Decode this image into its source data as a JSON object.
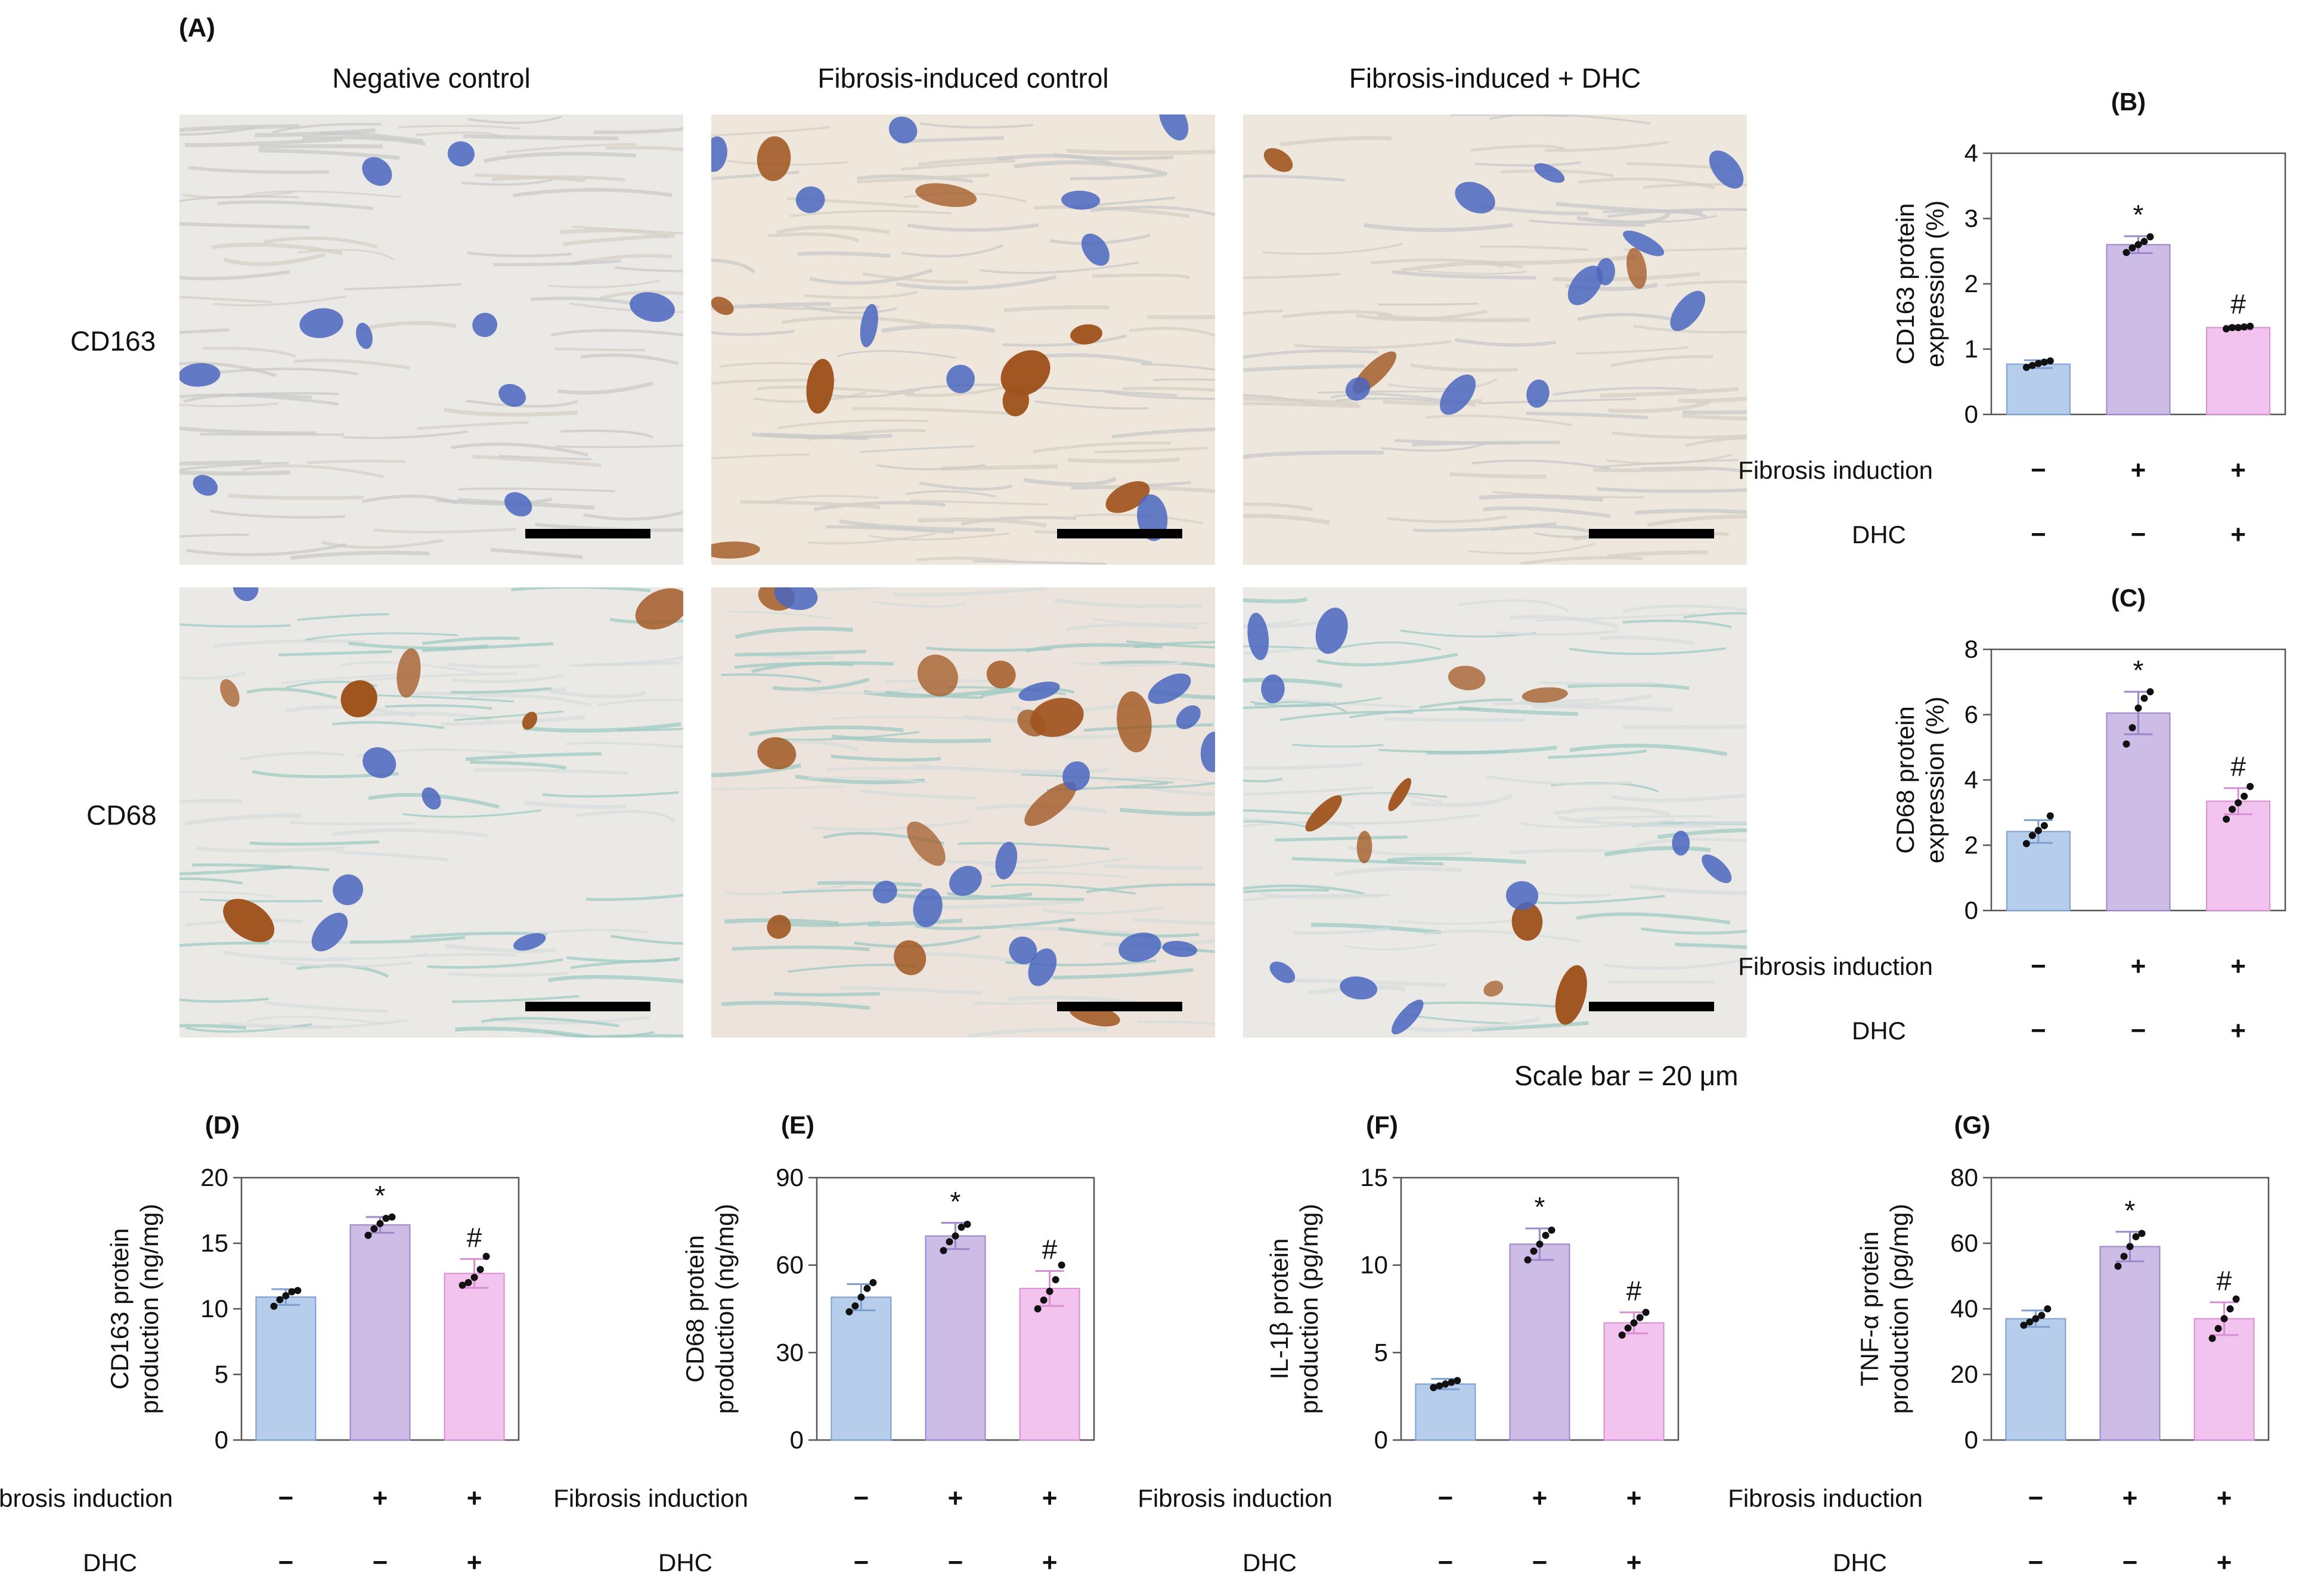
{
  "panel_a": {
    "letter": "(A)",
    "columns": [
      "Negative control",
      "Fibrosis-induced control",
      "Fibrosis-induced + DHC"
    ],
    "rows": [
      "CD163",
      "CD68"
    ],
    "scale_bar": "Scale bar = 20 μm"
  },
  "condition_rows": {
    "fibrosis_label": "Fibrosis induction",
    "dhc_label": "DHC",
    "fibrosis": [
      "−",
      "+",
      "+"
    ],
    "dhc": [
      "−",
      "−",
      "+"
    ]
  },
  "colors": {
    "negative": "#b6cdeb",
    "fibrosis": "#cdbde6",
    "dhc": "#f3c3ef",
    "negative_edge": "#7f9fcf",
    "fibrosis_edge": "#9d86c9",
    "dhc_edge": "#d68fd0",
    "nucleus": "#4a66c0",
    "stain": "#a0541e"
  },
  "chart_data": [
    {
      "id": "B",
      "letter": "(B)",
      "type": "bar",
      "ylabel": [
        "CD163 protein",
        "expression (%)"
      ],
      "ylim": [
        0,
        4
      ],
      "yticks": [
        0,
        1,
        2,
        3,
        4
      ],
      "values": [
        0.77,
        2.6,
        1.33
      ],
      "errors": [
        0.06,
        0.13,
        0.03
      ],
      "points": [
        [
          0.72,
          0.75,
          0.78,
          0.8,
          0.82
        ],
        [
          2.48,
          2.55,
          2.6,
          2.65,
          2.72
        ],
        [
          1.31,
          1.33,
          1.33,
          1.34,
          1.35
        ]
      ],
      "annotations": [
        "",
        "*",
        "#"
      ]
    },
    {
      "id": "C",
      "letter": "(C)",
      "type": "bar",
      "ylabel": [
        "CD68 protein",
        "expression (%)"
      ],
      "ylim": [
        0,
        8
      ],
      "yticks": [
        0,
        2,
        4,
        6,
        8
      ],
      "values": [
        2.42,
        6.05,
        3.35
      ],
      "errors": [
        0.35,
        0.65,
        0.4
      ],
      "points": [
        [
          2.05,
          2.3,
          2.45,
          2.6,
          2.9
        ],
        [
          5.1,
          5.6,
          6.2,
          6.5,
          6.7
        ],
        [
          2.8,
          3.1,
          3.3,
          3.5,
          3.8
        ]
      ],
      "annotations": [
        "",
        "*",
        "#"
      ]
    },
    {
      "id": "D",
      "letter": "(D)",
      "type": "bar",
      "ylabel": [
        "CD163 protein",
        "production (ng/mg)"
      ],
      "ylim": [
        0,
        20
      ],
      "yticks": [
        0,
        5,
        10,
        15,
        20
      ],
      "values": [
        10.9,
        16.4,
        12.7
      ],
      "errors": [
        0.6,
        0.6,
        1.1
      ],
      "points": [
        [
          10.2,
          10.7,
          11.0,
          11.3,
          11.4
        ],
        [
          15.6,
          16.1,
          16.5,
          16.9,
          17.0
        ],
        [
          11.8,
          12.0,
          12.4,
          13.0,
          14.0
        ]
      ],
      "annotations": [
        "",
        "*",
        "#"
      ]
    },
    {
      "id": "E",
      "letter": "(E)",
      "type": "bar",
      "ylabel": [
        "CD68 protein",
        "production (ng/mg)"
      ],
      "ylim": [
        0,
        90
      ],
      "yticks": [
        0,
        30,
        60,
        90
      ],
      "values": [
        49,
        70,
        52
      ],
      "errors": [
        4.5,
        4.5,
        6.0
      ],
      "points": [
        [
          44,
          46,
          49,
          52,
          54
        ],
        [
          65,
          68,
          70,
          73,
          74
        ],
        [
          45,
          48,
          51,
          55,
          60
        ]
      ],
      "annotations": [
        "",
        "*",
        "#"
      ]
    },
    {
      "id": "F",
      "letter": "(F)",
      "type": "bar",
      "ylabel": [
        "IL-1β protein",
        "production (pg/mg)"
      ],
      "ylim": [
        0,
        15
      ],
      "yticks": [
        0,
        5,
        10,
        15
      ],
      "values": [
        3.2,
        11.2,
        6.7
      ],
      "errors": [
        0.3,
        0.9,
        0.6
      ],
      "points": [
        [
          3.0,
          3.1,
          3.2,
          3.3,
          3.4
        ],
        [
          10.3,
          10.8,
          11.2,
          11.7,
          12.0
        ],
        [
          6.0,
          6.4,
          6.7,
          7.0,
          7.3
        ]
      ],
      "annotations": [
        "",
        "*",
        "#"
      ]
    },
    {
      "id": "G",
      "letter": "(G)",
      "type": "bar",
      "ylabel": [
        "TNF-α protein",
        "production (pg/mg)"
      ],
      "ylim": [
        0,
        80
      ],
      "yticks": [
        0,
        20,
        40,
        60,
        80
      ],
      "values": [
        37,
        59,
        37
      ],
      "errors": [
        2.5,
        4.5,
        5.0
      ],
      "points": [
        [
          35,
          36,
          37,
          38,
          40
        ],
        [
          53,
          56,
          59,
          62,
          63
        ],
        [
          31,
          34,
          37,
          40,
          43
        ]
      ],
      "annotations": [
        "",
        "*",
        "#"
      ]
    }
  ]
}
